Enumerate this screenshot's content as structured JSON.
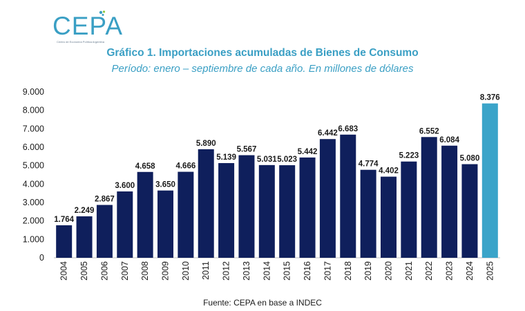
{
  "logo": {
    "text": "CEPA",
    "subtext": "Centro de Economía Política Argentina"
  },
  "colors": {
    "bar": "#0f1f5c",
    "highlight": "#3ba4c9",
    "accent": "#3a9fc4"
  },
  "chart_data": {
    "type": "bar",
    "title": "Gráfico 1. Importaciones acumuladas de Bienes de Consumo",
    "subtitle": "Período: enero – septiembre de cada año. En millones de dólares",
    "source": "Fuente: CEPA en base a INDEC",
    "categories": [
      "2004",
      "2005",
      "2006",
      "2007",
      "2008",
      "2009",
      "2010",
      "2011",
      "2012",
      "2013",
      "2014",
      "2015",
      "2016",
      "2017",
      "2018",
      "2019",
      "2020",
      "2021",
      "2022",
      "2023",
      "2024",
      "2025"
    ],
    "values": [
      1764,
      2249,
      2867,
      3600,
      4658,
      3650,
      4666,
      5890,
      5139,
      5567,
      5031,
      5023,
      5442,
      6442,
      6683,
      4774,
      4402,
      5223,
      6552,
      6084,
      5080,
      8376
    ],
    "labels": [
      "1.764",
      "2.249",
      "2.867",
      "3.600",
      "4.658",
      "3.650",
      "4.666",
      "5.890",
      "5.139",
      "5.567",
      "5.031",
      "5.023",
      "5.442",
      "6.442",
      "6.683",
      "4.774",
      "4.402",
      "5.223",
      "6.552",
      "6.084",
      "5.080",
      "8.376"
    ],
    "highlight_category": "2025",
    "ylim": [
      0,
      9000
    ],
    "yticks": [
      0,
      1000,
      2000,
      3000,
      4000,
      5000,
      6000,
      7000,
      8000,
      9000
    ],
    "ytick_labels": [
      "0",
      "1.000",
      "2.000",
      "3.000",
      "4.000",
      "5.000",
      "6.000",
      "7.000",
      "8.000",
      "9.000"
    ],
    "grid": false,
    "legend": "none"
  }
}
